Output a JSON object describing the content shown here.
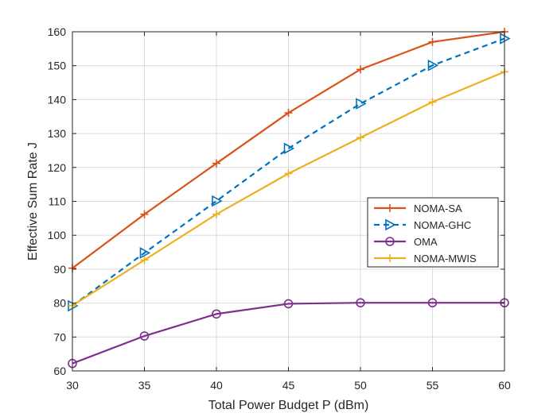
{
  "chart_data": {
    "type": "line",
    "title": "",
    "xlabel": "Total Power Budget P (dBm)",
    "ylabel": "Effective Sum Rate J",
    "xlim": [
      30,
      60
    ],
    "ylim": [
      60,
      160
    ],
    "xticks": [
      30,
      35,
      40,
      45,
      50,
      55,
      60
    ],
    "yticks": [
      60,
      70,
      80,
      90,
      100,
      110,
      120,
      130,
      140,
      150,
      160
    ],
    "grid": true,
    "legend_position": "right",
    "x": [
      30,
      35,
      40,
      45,
      50,
      55,
      60
    ],
    "series": [
      {
        "name": "NOMA-SA",
        "values": [
          90.3,
          106.2,
          121.2,
          136.1,
          148.9,
          157.0,
          160.0
        ],
        "color": "#D95319",
        "line": "solid",
        "marker": "plus"
      },
      {
        "name": "NOMA-GHC",
        "values": [
          79.2,
          94.8,
          110.1,
          125.6,
          138.8,
          150.1,
          158.0
        ],
        "color": "#0072BD",
        "line": "dashed",
        "marker": "triangle-right"
      },
      {
        "name": "OMA",
        "values": [
          62.2,
          70.3,
          76.8,
          79.8,
          80.1,
          80.1,
          80.1
        ],
        "color": "#7E2F8E",
        "line": "solid",
        "marker": "circle"
      },
      {
        "name": "NOMA-MWIS",
        "values": [
          79.3,
          92.7,
          106.2,
          118.2,
          128.8,
          139.3,
          148.2
        ],
        "color": "#EDB120",
        "line": "solid",
        "marker": "plus"
      }
    ]
  }
}
